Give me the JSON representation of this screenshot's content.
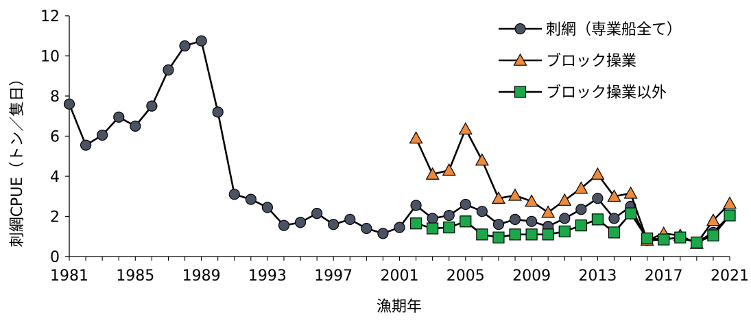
{
  "chart_data": {
    "type": "line",
    "xlabel": "漁期年",
    "ylabel": "刺網CPUE（トン／隻日）",
    "xlim": [
      1981,
      2021
    ],
    "ylim": [
      0,
      12
    ],
    "x_ticks": [
      1981,
      1985,
      1989,
      1993,
      1997,
      2001,
      2005,
      2009,
      2013,
      2017,
      2021
    ],
    "y_ticks": [
      0,
      2,
      4,
      6,
      8,
      10,
      12
    ],
    "legend_position": "top-right",
    "series": [
      {
        "name": "刺網（専業船全て）",
        "marker": "circle",
        "color": "#4a5263",
        "points": [
          [
            1981,
            7.6
          ],
          [
            1982,
            5.55
          ],
          [
            1983,
            6.05
          ],
          [
            1984,
            6.95
          ],
          [
            1985,
            6.5
          ],
          [
            1986,
            7.5
          ],
          [
            1987,
            9.3
          ],
          [
            1988,
            10.5
          ],
          [
            1989,
            10.75
          ],
          [
            1990,
            7.2
          ],
          [
            1991,
            3.1
          ],
          [
            1992,
            2.85
          ],
          [
            1993,
            2.45
          ],
          [
            1994,
            1.55
          ],
          [
            1995,
            1.7
          ],
          [
            1996,
            2.15
          ],
          [
            1997,
            1.6
          ],
          [
            1998,
            1.85
          ],
          [
            1999,
            1.4
          ],
          [
            2000,
            1.15
          ],
          [
            2001,
            1.45
          ],
          [
            2002,
            2.55
          ],
          [
            2003,
            1.9
          ],
          [
            2004,
            2.05
          ],
          [
            2005,
            2.6
          ],
          [
            2006,
            2.25
          ],
          [
            2007,
            1.6
          ],
          [
            2008,
            1.85
          ],
          [
            2009,
            1.75
          ],
          [
            2010,
            1.5
          ],
          [
            2011,
            1.9
          ],
          [
            2012,
            2.35
          ],
          [
            2013,
            2.9
          ],
          [
            2014,
            1.9
          ],
          [
            2015,
            2.5
          ],
          [
            2016,
            0.8
          ],
          [
            2017,
            0.85
          ],
          [
            2018,
            0.95
          ],
          [
            2019,
            0.7
          ],
          [
            2020,
            1.2
          ],
          [
            2021,
            2.05
          ]
        ]
      },
      {
        "name": "ブロック操業",
        "marker": "triangle",
        "color": "#ee8a3c",
        "points": [
          [
            2002,
            5.9
          ],
          [
            2003,
            4.1
          ],
          [
            2004,
            4.3
          ],
          [
            2005,
            6.35
          ],
          [
            2006,
            4.8
          ],
          [
            2007,
            2.9
          ],
          [
            2008,
            3.05
          ],
          [
            2009,
            2.75
          ],
          [
            2010,
            2.2
          ],
          [
            2011,
            2.8
          ],
          [
            2012,
            3.4
          ],
          [
            2013,
            4.1
          ],
          [
            2014,
            3.0
          ],
          [
            2015,
            3.15
          ],
          [
            2016,
            0.8
          ],
          [
            2017,
            1.15
          ],
          [
            2018,
            1.05
          ],
          [
            2019,
            0.65
          ],
          [
            2020,
            1.8
          ],
          [
            2021,
            2.65
          ]
        ]
      },
      {
        "name": "ブロック操業以外",
        "marker": "square",
        "color": "#1aa84a",
        "points": [
          [
            2002,
            1.65
          ],
          [
            2003,
            1.4
          ],
          [
            2004,
            1.45
          ],
          [
            2005,
            1.75
          ],
          [
            2006,
            1.1
          ],
          [
            2007,
            0.95
          ],
          [
            2008,
            1.1
          ],
          [
            2009,
            1.1
          ],
          [
            2010,
            1.1
          ],
          [
            2011,
            1.25
          ],
          [
            2012,
            1.55
          ],
          [
            2013,
            1.85
          ],
          [
            2014,
            1.2
          ],
          [
            2015,
            2.15
          ],
          [
            2016,
            0.9
          ],
          [
            2017,
            0.85
          ],
          [
            2018,
            0.95
          ],
          [
            2019,
            0.7
          ],
          [
            2020,
            1.05
          ],
          [
            2021,
            2.05
          ]
        ]
      }
    ]
  }
}
